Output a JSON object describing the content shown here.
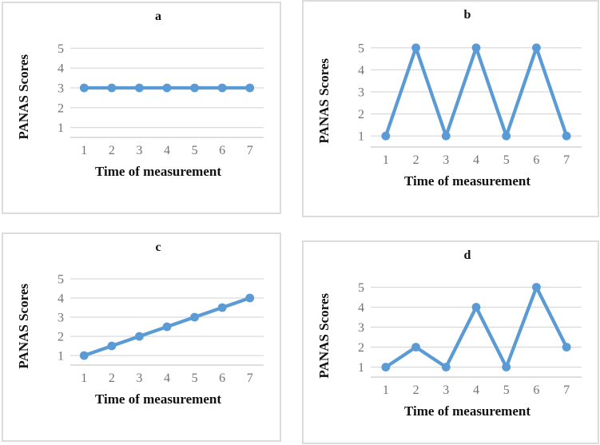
{
  "figure_caption_letters": [
    "a",
    "b",
    "c",
    "d"
  ],
  "colors": {
    "accent_line": "#5B9BD5",
    "gridline": "#D9D9D9",
    "axis_line": "#C9C9C9",
    "tick_text": "#737373",
    "label_text": "#111111",
    "panel_border": "#DCDCDC",
    "background": "#FFFFFF"
  },
  "chart_data": [
    {
      "type": "line",
      "title": "a",
      "x": [
        1,
        2,
        3,
        4,
        5,
        6,
        7
      ],
      "values": [
        3,
        3,
        3,
        3,
        3,
        3,
        3
      ],
      "xlabel": "Time of measurement",
      "ylabel": "PANAS Scores",
      "ylim": [
        0.5,
        5.5
      ],
      "yticks": [
        1,
        2,
        3,
        4,
        5
      ],
      "grid": true,
      "legend": "none",
      "marker": "circle",
      "line_color": "#5B9BD5"
    },
    {
      "type": "line",
      "title": "b",
      "x": [
        1,
        2,
        3,
        4,
        5,
        6,
        7
      ],
      "values": [
        1,
        5,
        1,
        5,
        1,
        5,
        1
      ],
      "xlabel": "Time of measurement",
      "ylabel": "PANAS Scores",
      "ylim": [
        0.5,
        5.5
      ],
      "yticks": [
        1,
        2,
        3,
        4,
        5
      ],
      "grid": true,
      "legend": "none",
      "marker": "circle",
      "line_color": "#5B9BD5"
    },
    {
      "type": "line",
      "title": "c",
      "x": [
        1,
        2,
        3,
        4,
        5,
        6,
        7
      ],
      "values": [
        1,
        1.5,
        2,
        2.5,
        3,
        3.5,
        4
      ],
      "xlabel": "Time of measurement",
      "ylabel": "PANAS Scores",
      "ylim": [
        0.5,
        5.5
      ],
      "yticks": [
        1,
        2,
        3,
        4,
        5
      ],
      "grid": true,
      "legend": "none",
      "marker": "circle",
      "line_color": "#5B9BD5"
    },
    {
      "type": "line",
      "title": "d",
      "x": [
        1,
        2,
        3,
        4,
        5,
        6,
        7
      ],
      "values": [
        1,
        2,
        1,
        4,
        1,
        5,
        2
      ],
      "xlabel": "Time of measurement",
      "ylabel": "PANAS Scores",
      "ylim": [
        0.5,
        5.5
      ],
      "yticks": [
        1,
        2,
        3,
        4,
        5
      ],
      "grid": true,
      "legend": "none",
      "marker": "circle",
      "line_color": "#5B9BD5"
    }
  ]
}
